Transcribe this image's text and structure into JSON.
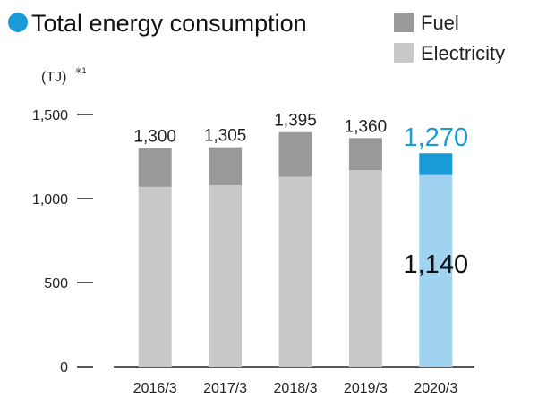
{
  "title": "Total energy consumption",
  "unit": "(TJ)",
  "unit_note": "※1",
  "colors": {
    "fuel": "#999999",
    "electricity": "#c8c9ca",
    "fuel_highlight": "#1a9ad6",
    "electricity_highlight": "#a0d3ef",
    "title_dot": "#1a9ad6"
  },
  "legend": [
    {
      "label": "Fuel",
      "color": "#999999"
    },
    {
      "label": "Electricity",
      "color": "#c8c9ca"
    }
  ],
  "chart_data": {
    "type": "bar",
    "stacked": true,
    "categories": [
      "2016/3",
      "2017/3",
      "2018/3",
      "2019/3",
      "2020/3"
    ],
    "series": [
      {
        "name": "Electricity",
        "values": [
          1070,
          1080,
          1130,
          1170,
          1140
        ]
      },
      {
        "name": "Fuel",
        "values": [
          230,
          225,
          265,
          190,
          130
        ]
      }
    ],
    "totals": [
      1300,
      1305,
      1395,
      1360,
      1270
    ],
    "total_labels": [
      "1,300",
      "1,305",
      "1,395",
      "1,360",
      "1,270"
    ],
    "highlight_index": 4,
    "highlight_inner_label": "1,140",
    "yticks": [
      0,
      500,
      1000,
      1500
    ],
    "ytick_labels": [
      "0",
      "500",
      "1,000",
      "1,500"
    ],
    "ylim": [
      0,
      1500
    ],
    "grid": false,
    "legend_position": "top-right"
  }
}
